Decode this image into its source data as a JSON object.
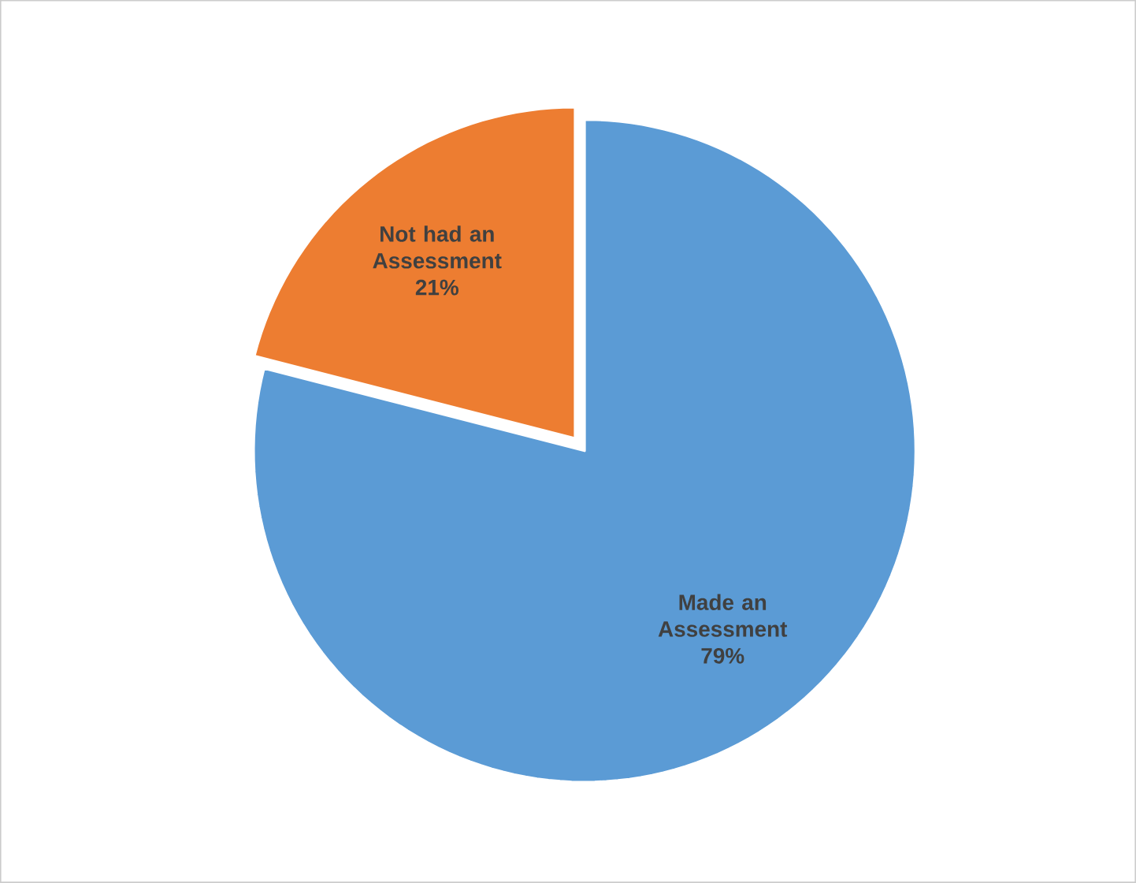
{
  "chart_data": {
    "type": "pie",
    "categories": [
      "Made an Assessment",
      "Not had an Assessment"
    ],
    "values": [
      79,
      21
    ],
    "colors": [
      "#5b9bd5",
      "#ed7d31"
    ],
    "value_labels": [
      "79%",
      "21%"
    ]
  }
}
